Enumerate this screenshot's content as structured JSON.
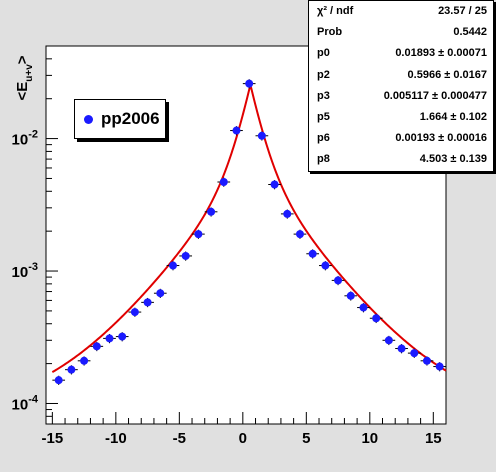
{
  "chart_data": {
    "type": "scatter",
    "yscale": "log",
    "ylabel": "<E",
    "ylabel_sub": "u+v",
    "ylabel_close": ">",
    "xlim": [
      -15.5,
      16.0
    ],
    "ylim": [
      7e-05,
      0.05
    ],
    "xticks": [
      -15,
      -10,
      -5,
      0,
      5,
      10,
      15
    ],
    "xtick_labels": [
      "-15",
      "-10",
      "-5",
      "0",
      "5",
      "10",
      "15"
    ],
    "yticks": [
      0.0001,
      0.001,
      0.01
    ],
    "ytick_labels_base": [
      "10",
      "10",
      "10"
    ],
    "ytick_labels_exp": [
      "-4",
      "-3",
      "-2"
    ],
    "grid": false,
    "legend_position": "top-left",
    "series": [
      {
        "name": "pp2006",
        "color": "#1a1aff",
        "x": [
          -14.5,
          -13.5,
          -12.5,
          -11.5,
          -10.5,
          -9.5,
          -8.5,
          -7.5,
          -6.5,
          -5.5,
          -4.5,
          -3.5,
          -2.5,
          -1.5,
          -0.5,
          0.5,
          1.5,
          2.5,
          3.5,
          4.5,
          5.5,
          6.5,
          7.5,
          8.5,
          9.5,
          10.5,
          11.5,
          12.5,
          13.5,
          14.5,
          15.5
        ],
        "y": [
          0.00015,
          0.00018,
          0.00021,
          0.00027,
          0.00031,
          0.00032,
          0.00049,
          0.00058,
          0.00068,
          0.0011,
          0.0013,
          0.0019,
          0.0028,
          0.0047,
          0.0115,
          0.026,
          0.0105,
          0.0045,
          0.0027,
          0.0019,
          0.00135,
          0.0011,
          0.00085,
          0.00065,
          0.00053,
          0.00044,
          0.0003,
          0.00026,
          0.00024,
          0.00021,
          0.00019
        ],
        "xerr": 0.5,
        "yerr_frac": 0.08
      }
    ],
    "fit": {
      "color": "#e00000",
      "p0": 0.01893,
      "p2": 0.5966,
      "p3": 0.005117,
      "p5": 1.664,
      "p6": 0.00193,
      "p8": 4.503,
      "background": 0.00019
    }
  },
  "legend": {
    "label": "pp2006"
  },
  "stats": [
    {
      "key": "χ² / ndf",
      "value": "23.57 / 25"
    },
    {
      "key": "Prob",
      "value": "0.5442"
    },
    {
      "key": "p0",
      "value": "0.01893 ± 0.00071"
    },
    {
      "key": "p2",
      "value": "0.5966 ± 0.0167"
    },
    {
      "key": "p3",
      "value": "0.005117 ± 0.000477"
    },
    {
      "key": "p5",
      "value": "1.664 ± 0.102"
    },
    {
      "key": "p6",
      "value": "0.00193 ± 0.00016"
    },
    {
      "key": "p8",
      "value": "4.503 ± 0.139"
    }
  ]
}
